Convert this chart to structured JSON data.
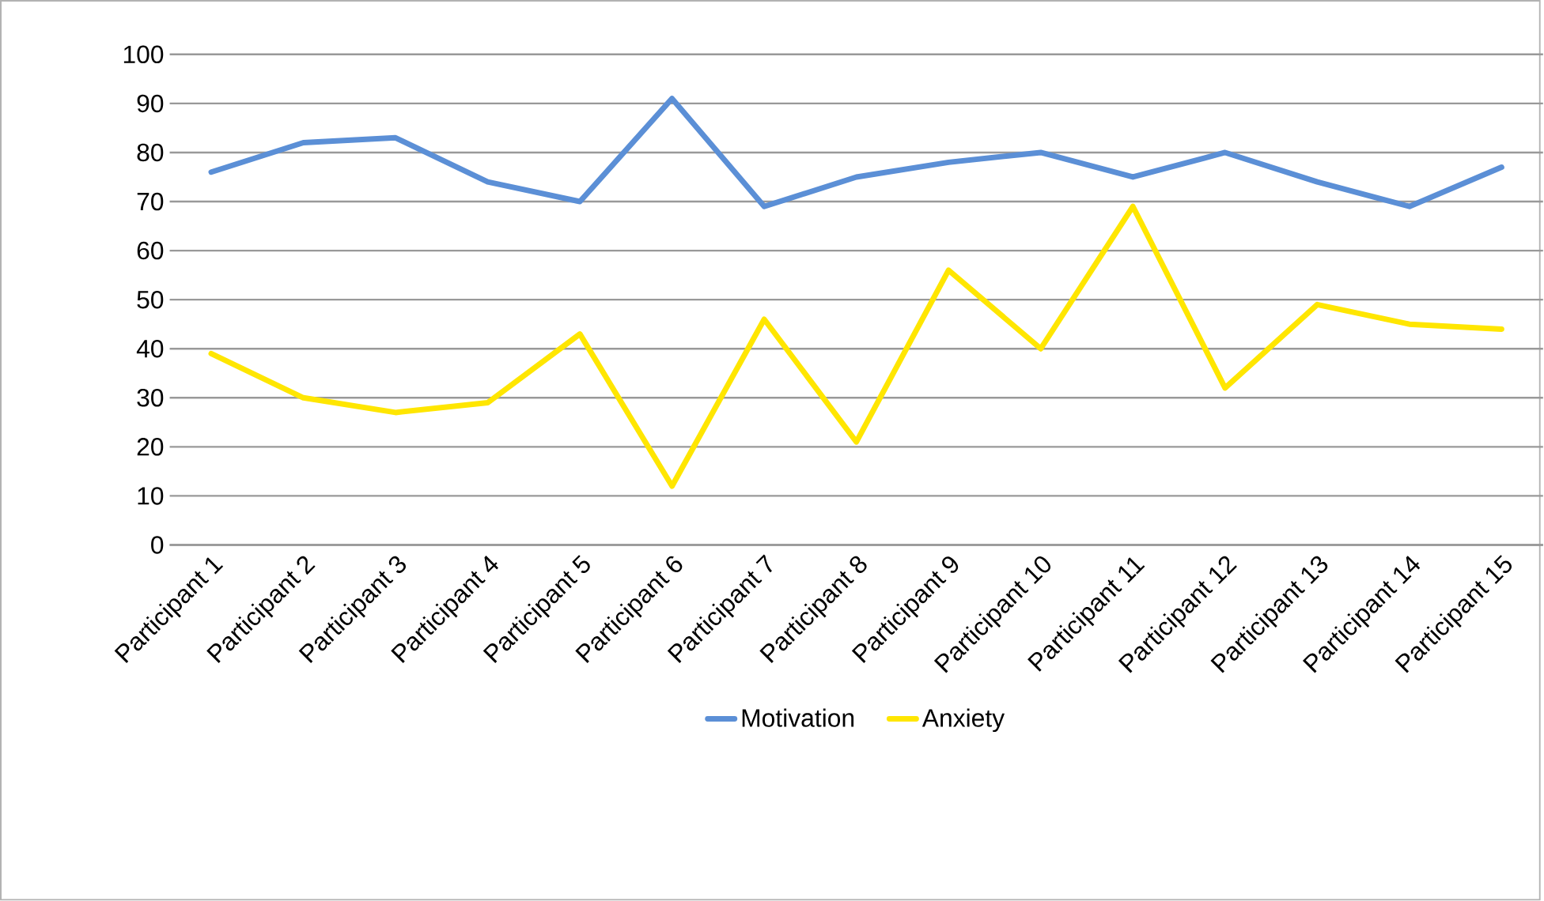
{
  "chart_data": {
    "type": "line",
    "categories": [
      "Participant 1",
      "Participant 2",
      "Participant 3",
      "Participant 4",
      "Participant 5",
      "Participant 6",
      "Participant 7",
      "Participant 8",
      "Participant 9",
      "Participant 10",
      "Participant 11",
      "Participant 12",
      "Participant 13",
      "Participant 14",
      "Participant 15"
    ],
    "series": [
      {
        "name": "Motivation",
        "color": "#5b8fd6",
        "values": [
          76,
          82,
          83,
          74,
          70,
          91,
          69,
          75,
          78,
          80,
          75,
          80,
          74,
          69,
          77
        ]
      },
      {
        "name": "Anxiety",
        "color": "#ffe600",
        "values": [
          39,
          30,
          27,
          29,
          43,
          12,
          46,
          21,
          56,
          40,
          69,
          32,
          49,
          45,
          44
        ]
      }
    ],
    "ylim": [
      0,
      100
    ],
    "yticks": [
      0,
      10,
      20,
      30,
      40,
      50,
      60,
      70,
      80,
      90,
      100
    ],
    "grid": "y",
    "legend": "bottom",
    "marker": "none",
    "line_style": "solid"
  }
}
